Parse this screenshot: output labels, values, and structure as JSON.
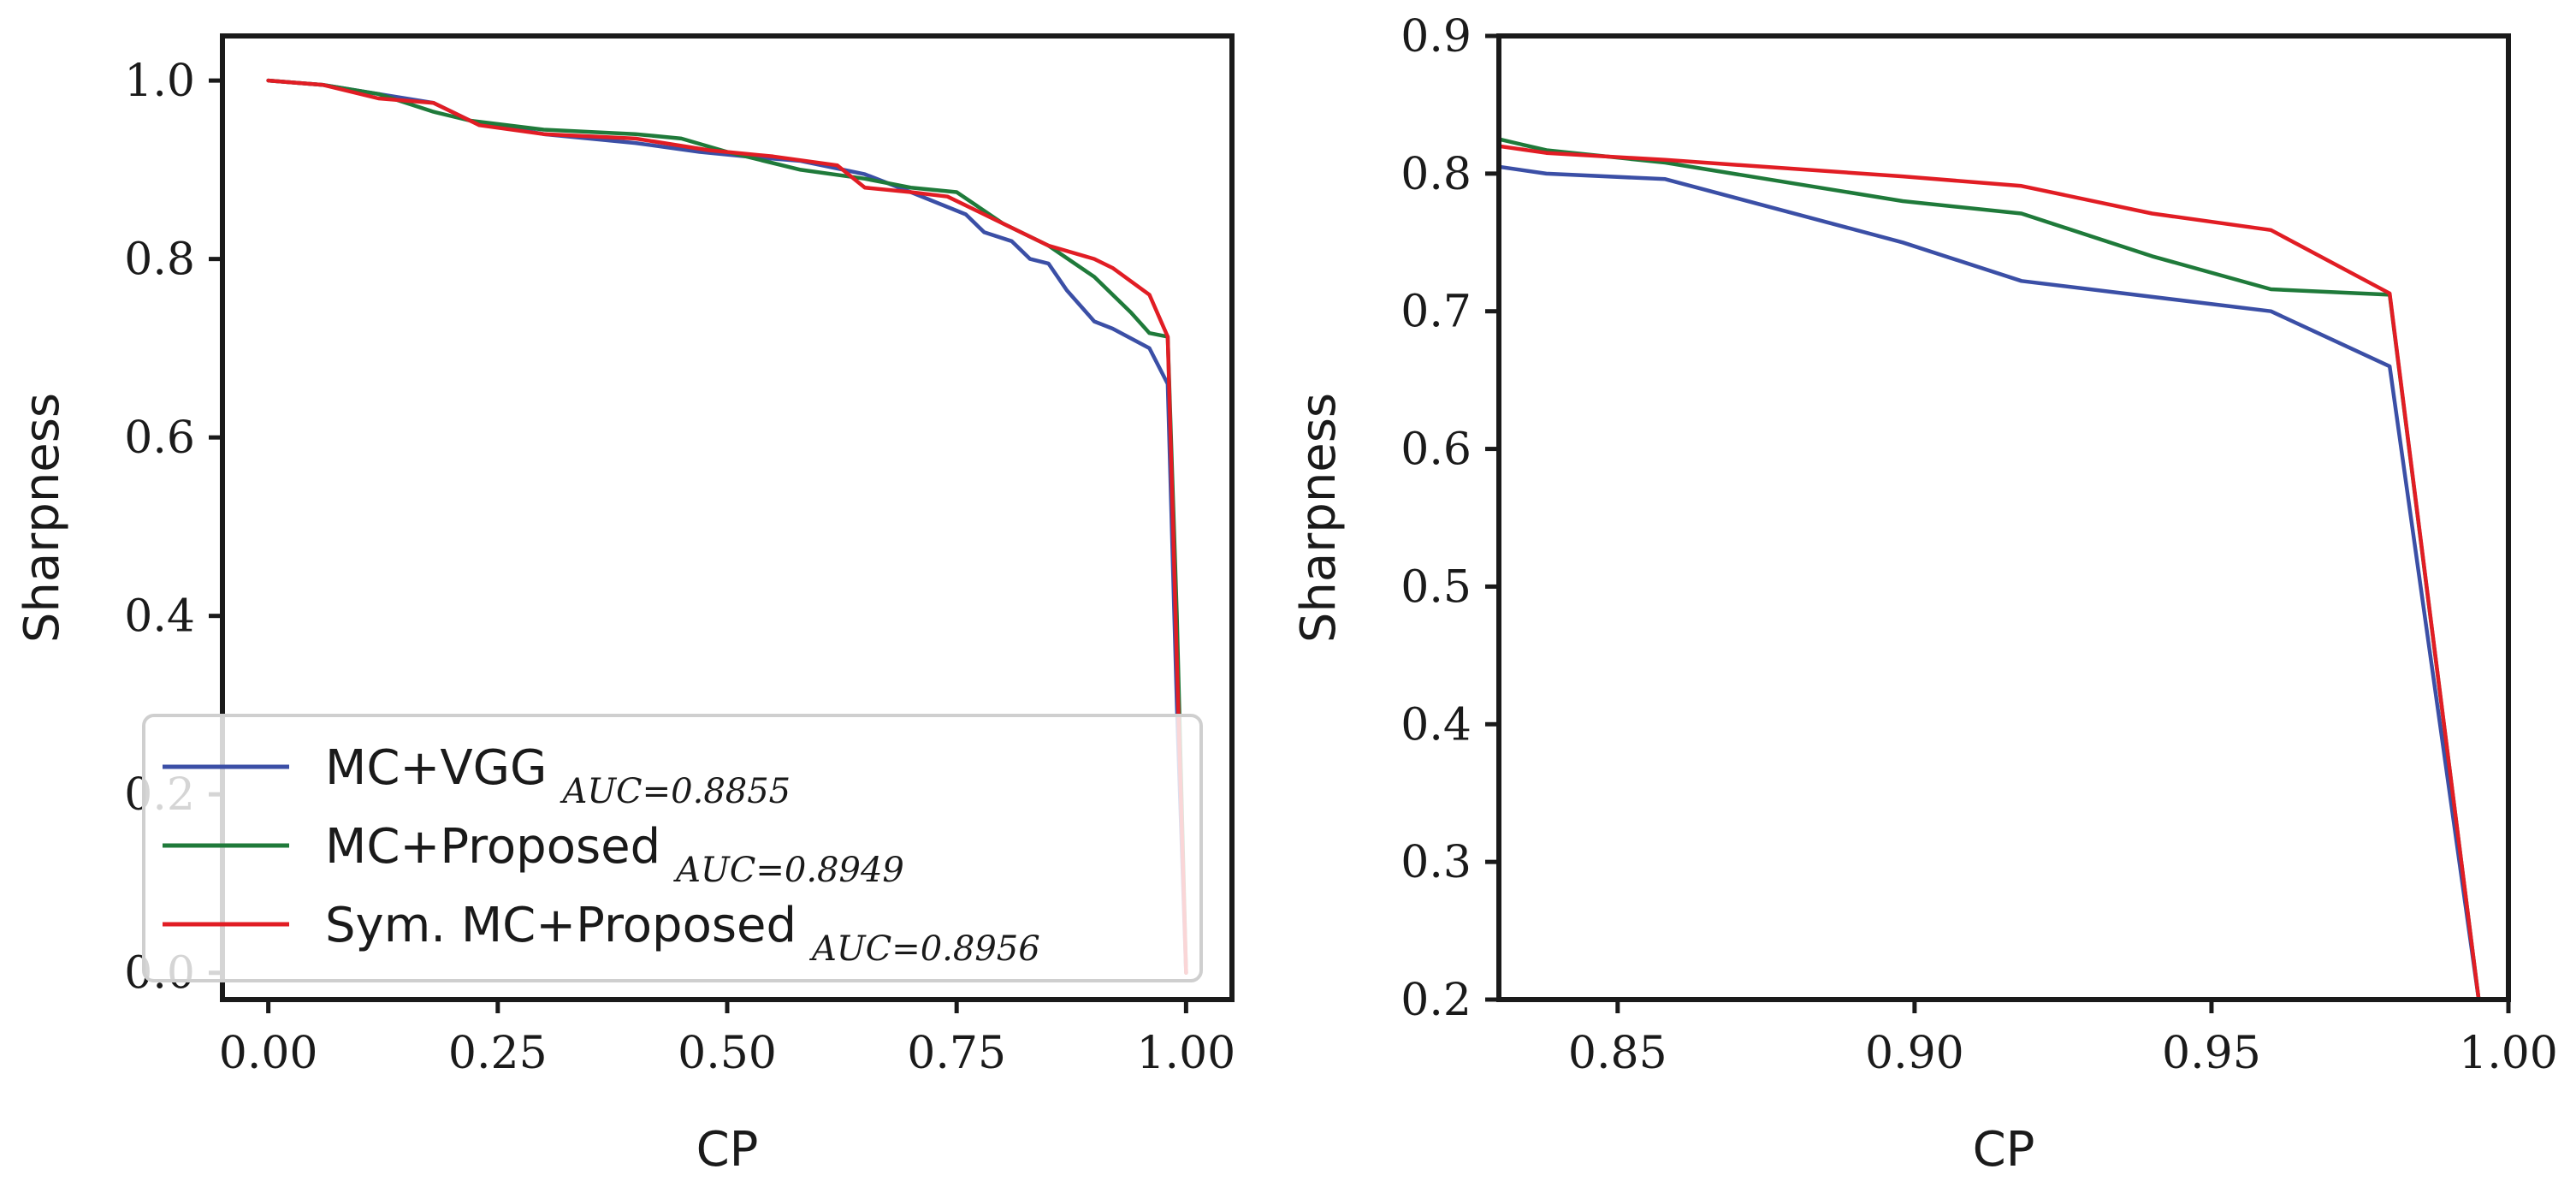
{
  "chart_data": [
    {
      "type": "line",
      "xlabel": "CP",
      "ylabel": "Sharpness",
      "xlim": [
        -0.05,
        1.05
      ],
      "ylim": [
        -0.03,
        1.05
      ],
      "xticks": [
        0.0,
        0.25,
        0.5,
        0.75,
        1.0
      ],
      "xtick_labels": [
        "0.00",
        "0.25",
        "0.50",
        "0.75",
        "1.00"
      ],
      "yticks": [
        0.0,
        0.2,
        0.4,
        0.6,
        0.8,
        1.0
      ],
      "ytick_labels": [
        "0.0",
        "0.2",
        "0.4",
        "0.6",
        "0.8",
        "1.0"
      ],
      "legend": {
        "position": "lower-left",
        "entries": [
          {
            "label": "MC+VGG",
            "auc": "AUC=0.8855",
            "color": "#3b4fa6"
          },
          {
            "label": "MC+Proposed",
            "auc": "AUC=0.8949",
            "color": "#1f7a3a"
          },
          {
            "label": "Sym. MC+Proposed",
            "auc": "AUC=0.8956",
            "color": "#e11d24"
          }
        ]
      },
      "series": [
        {
          "name": "MC+VGG",
          "color": "#3b4fa6",
          "x": [
            0.0,
            0.06,
            0.12,
            0.18,
            0.22,
            0.3,
            0.4,
            0.47,
            0.52,
            0.58,
            0.65,
            0.7,
            0.76,
            0.78,
            0.81,
            0.83,
            0.85,
            0.87,
            0.9,
            0.92,
            0.96,
            0.98,
            0.99,
            1.0
          ],
          "y": [
            1.0,
            0.995,
            0.985,
            0.975,
            0.955,
            0.94,
            0.93,
            0.92,
            0.915,
            0.91,
            0.895,
            0.875,
            0.85,
            0.83,
            0.82,
            0.8,
            0.795,
            0.765,
            0.73,
            0.722,
            0.7,
            0.66,
            0.3,
            0.0
          ]
        },
        {
          "name": "MC+Proposed",
          "color": "#1f7a3a",
          "x": [
            0.0,
            0.06,
            0.12,
            0.18,
            0.22,
            0.3,
            0.4,
            0.45,
            0.5,
            0.58,
            0.65,
            0.7,
            0.75,
            0.8,
            0.85,
            0.9,
            0.94,
            0.96,
            0.98,
            0.99,
            1.0
          ],
          "y": [
            1.0,
            0.995,
            0.985,
            0.965,
            0.955,
            0.945,
            0.94,
            0.935,
            0.92,
            0.9,
            0.89,
            0.88,
            0.875,
            0.84,
            0.815,
            0.78,
            0.74,
            0.717,
            0.713,
            0.4,
            0.0
          ]
        },
        {
          "name": "Sym. MC+Proposed",
          "color": "#e11d24",
          "x": [
            0.0,
            0.06,
            0.12,
            0.18,
            0.23,
            0.3,
            0.4,
            0.48,
            0.55,
            0.62,
            0.65,
            0.7,
            0.74,
            0.78,
            0.82,
            0.85,
            0.9,
            0.92,
            0.96,
            0.98,
            0.99,
            1.0
          ],
          "y": [
            1.0,
            0.995,
            0.98,
            0.975,
            0.95,
            0.94,
            0.935,
            0.922,
            0.915,
            0.905,
            0.88,
            0.875,
            0.87,
            0.85,
            0.83,
            0.815,
            0.8,
            0.79,
            0.76,
            0.713,
            0.35,
            0.0
          ]
        }
      ]
    },
    {
      "type": "line",
      "xlabel": "CP",
      "ylabel": "Sharpness",
      "xlim": [
        0.83,
        1.0
      ],
      "ylim": [
        0.2,
        0.9
      ],
      "xticks": [
        0.85,
        0.9,
        0.95,
        1.0
      ],
      "xtick_labels": [
        "0.85",
        "0.90",
        "0.95",
        "1.00"
      ],
      "yticks": [
        0.2,
        0.3,
        0.4,
        0.5,
        0.6,
        0.7,
        0.8,
        0.9
      ],
      "ytick_labels": [
        "0.2",
        "0.3",
        "0.4",
        "0.5",
        "0.6",
        "0.7",
        "0.8",
        "0.9"
      ],
      "series": [
        {
          "name": "MC+VGG",
          "color": "#3b4fa6",
          "x": [
            0.83,
            0.838,
            0.858,
            0.898,
            0.918,
            0.96,
            0.98,
            0.995
          ],
          "y": [
            0.805,
            0.8,
            0.796,
            0.75,
            0.722,
            0.7,
            0.66,
            0.2
          ]
        },
        {
          "name": "MC+Proposed",
          "color": "#1f7a3a",
          "x": [
            0.83,
            0.838,
            0.858,
            0.898,
            0.918,
            0.94,
            0.96,
            0.98,
            0.995
          ],
          "y": [
            0.825,
            0.817,
            0.808,
            0.78,
            0.771,
            0.74,
            0.716,
            0.712,
            0.2
          ]
        },
        {
          "name": "Sym. MC+Proposed",
          "color": "#e11d24",
          "x": [
            0.83,
            0.838,
            0.858,
            0.898,
            0.918,
            0.94,
            0.96,
            0.98,
            0.995
          ],
          "y": [
            0.82,
            0.815,
            0.81,
            0.798,
            0.791,
            0.771,
            0.759,
            0.713,
            0.2
          ]
        }
      ]
    }
  ]
}
